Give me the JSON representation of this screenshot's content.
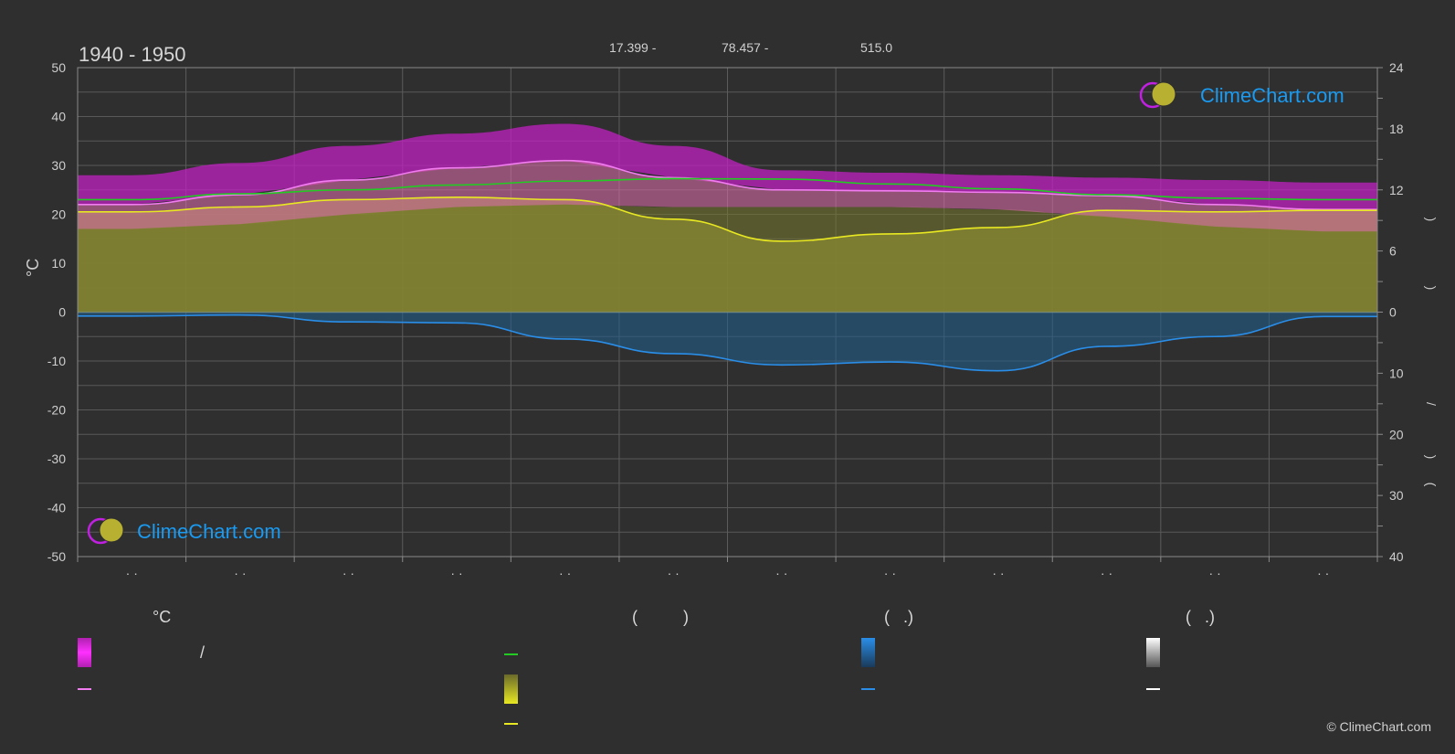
{
  "title": "1940 - 1950",
  "header": {
    "lat": "17.399 -",
    "lon": "78.457 -",
    "elev": "515.0"
  },
  "axes": {
    "left_unit": "°C",
    "left_ticks": [
      "50",
      "40",
      "30",
      "20",
      "10",
      "0",
      "-10",
      "-20",
      "-30",
      "-40",
      "-50"
    ],
    "right_top_ticks": [
      "24",
      "18",
      "12",
      "6",
      "0"
    ],
    "right_bottom_ticks": [
      "10",
      "20",
      "30",
      "40"
    ],
    "right_glyphs": [
      ")",
      ")",
      "/",
      ")",
      "("
    ],
    "x_ticks": [
      "· ·",
      "· ·",
      "· ·",
      "· ·",
      "· ·",
      "· ·",
      "· ·",
      "· ·",
      "· ·",
      "· ·",
      "· ·",
      "· ·"
    ]
  },
  "logo": {
    "text": "ClimeChart.com"
  },
  "copyright": "© ClimeChart.com",
  "legend": {
    "col1_header": "°C",
    "col2_header": "(          )",
    "col3_header": "(   .)",
    "col4_header": "(   .)",
    "slash": "/"
  },
  "colors": {
    "background": "#2f2f2f",
    "grid": "#5a5a5a",
    "magenta": "#e020e0",
    "pink_line": "#f07cf0",
    "green": "#22cc22",
    "yellow": "#e8e822",
    "olive": "#9c9c3a",
    "blue": "#2a8ee8",
    "logo_blue": "#1a9af0"
  },
  "chart_data": {
    "type": "area",
    "title": "1940 - 1950",
    "ylabel": "°C",
    "ylim": [
      -50,
      50
    ],
    "y2lim_top": [
      0,
      24
    ],
    "y2lim_bottom": [
      0,
      40
    ],
    "x": [
      0.5,
      1.5,
      2.5,
      3.5,
      4.5,
      5.5,
      6.5,
      7.5,
      8.5,
      9.5,
      10.5,
      11.5
    ],
    "series": [
      {
        "values": [
          22.0,
          24.0,
          27.0,
          29.5,
          31.0,
          27.5,
          25.0,
          24.8,
          24.5,
          23.8,
          22.0,
          21.0
        ]
      },
      {
        "values": [
          23.0,
          24.2,
          25.0,
          26.0,
          26.8,
          27.3,
          27.2,
          26.2,
          25.2,
          24.0,
          23.3,
          23.0
        ]
      },
      {
        "values": [
          20.5,
          21.5,
          23.0,
          23.5,
          23.0,
          19.0,
          14.5,
          16.0,
          17.3,
          20.8,
          20.5,
          20.8
        ]
      },
      {
        "values": [
          -0.8,
          -0.6,
          -2.0,
          -2.2,
          -5.5,
          -8.5,
          -10.8,
          -10.2,
          -12.0,
          -7.0,
          -5.0,
          -0.9
        ]
      },
      {
        "values": [
          28.0,
          30.5,
          34.0,
          36.5,
          38.5,
          34.0,
          29.0,
          28.5,
          28.0,
          27.5,
          27.0,
          26.5
        ]
      },
      {
        "values": [
          17.0,
          18.0,
          20.0,
          21.5,
          22.0,
          21.5,
          21.5,
          21.5,
          21.0,
          19.5,
          17.5,
          16.5
        ]
      }
    ]
  }
}
